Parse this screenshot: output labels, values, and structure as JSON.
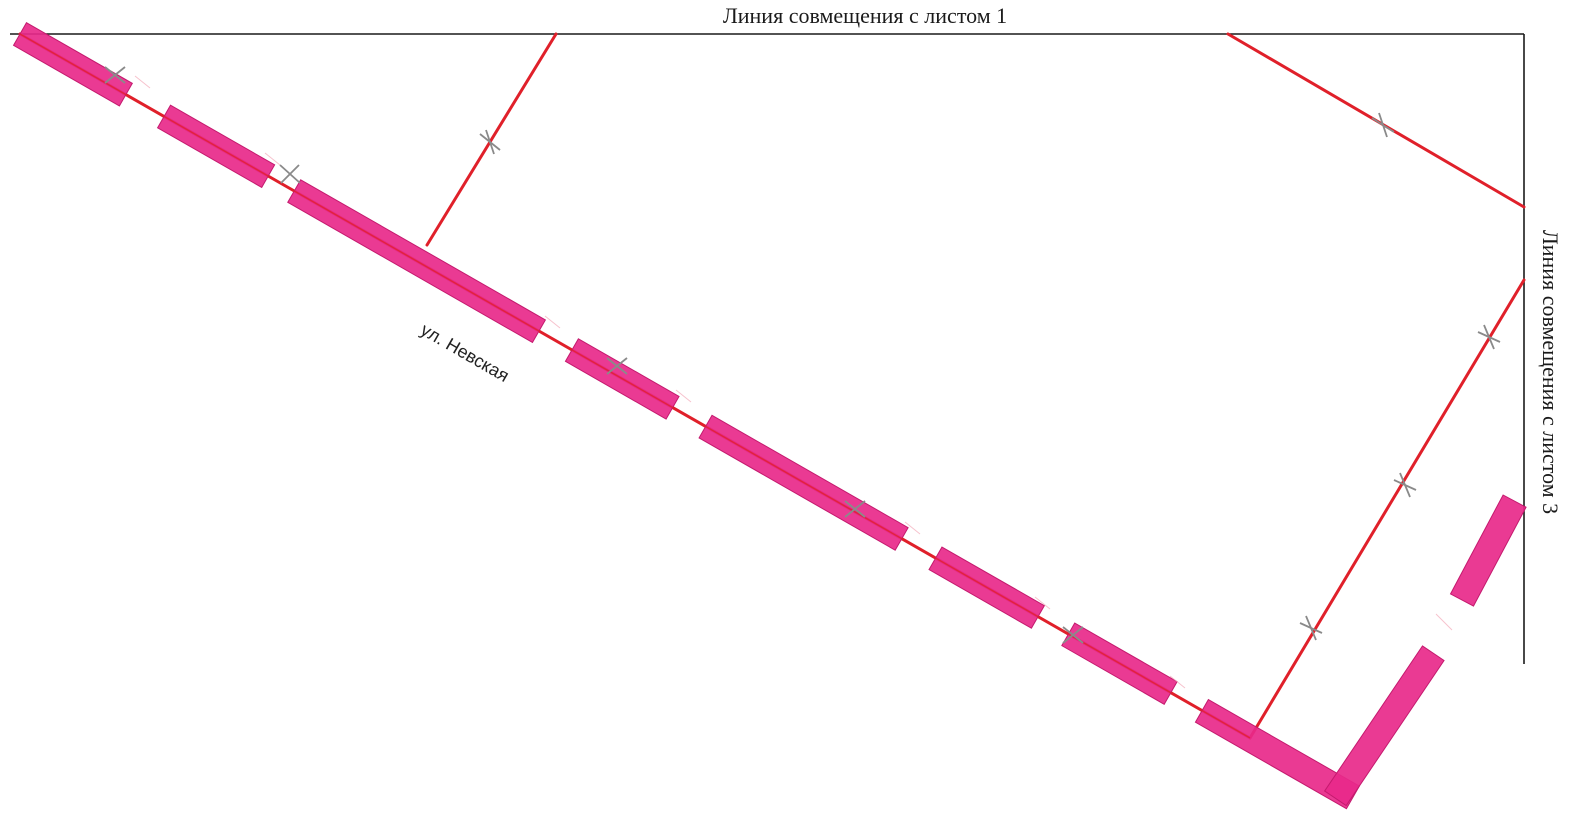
{
  "match_lines": {
    "top_label": "Линия совмещения с листом 1",
    "right_label": "Линия совмещения с листом 3"
  },
  "street": {
    "name": "ул. Невская"
  },
  "colors": {
    "boundary_line": "#e0202a",
    "sidewalk_fill": "#e8298a",
    "frame_line": "#1a1a1a",
    "crossing_mark": "#8a8a8a"
  }
}
